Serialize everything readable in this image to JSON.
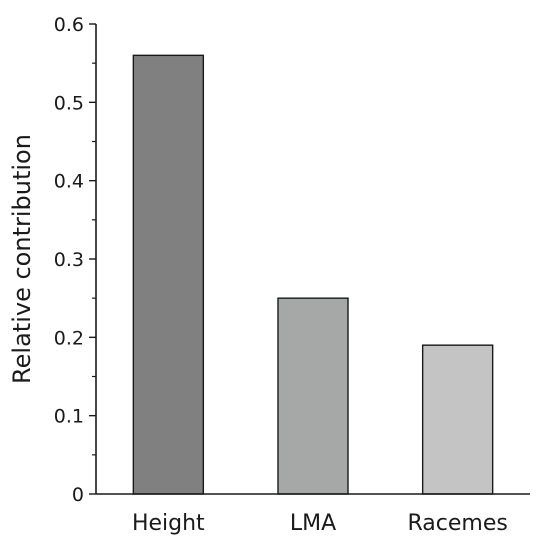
{
  "chart_data": {
    "type": "bar",
    "title": "",
    "xlabel": "",
    "ylabel": "Relative contribution",
    "categories": [
      "Height",
      "LMA",
      "Racemes"
    ],
    "values": [
      0.56,
      0.25,
      0.19
    ],
    "ylim": [
      0,
      0.6
    ],
    "yticks": [
      "0",
      "0.1",
      "0.2",
      "0.3",
      "0.4",
      "0.5",
      "0.6"
    ],
    "bar_colors": [
      "#808080",
      "#a6a8a7",
      "#c4c4c4"
    ],
    "bar_stroke": "#1a1a1a",
    "grid": false,
    "legend": "none"
  }
}
